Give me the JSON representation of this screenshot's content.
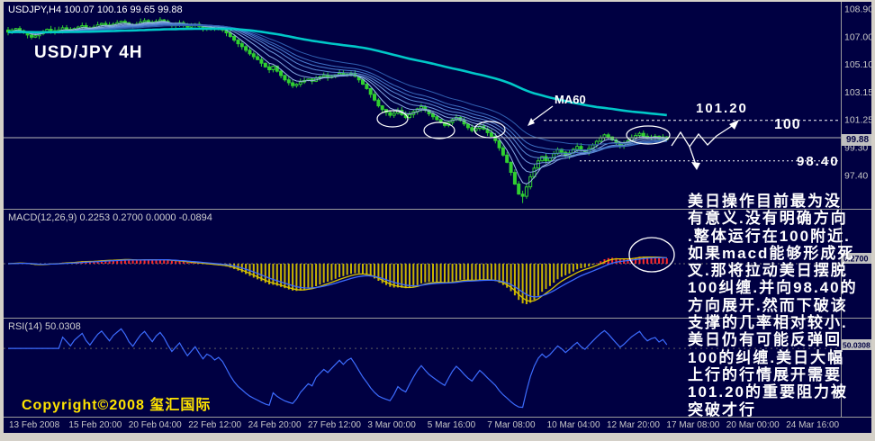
{
  "window": {
    "title_line": "USDJPY,H4 100.07 100.16 99.65 99.88",
    "chart_label": "USD/JPY 4H",
    "copyright": "Copyright©2008 玺汇国际"
  },
  "colors": {
    "background": "#000042",
    "candle": "#30d030",
    "ma_slow": "#00c8c8",
    "fan": [
      "#9db9e8",
      "#85a8e2",
      "#6f99dc",
      "#5c8bd6",
      "#4a7dd0",
      "#3c6ec2",
      "#2f5fb0"
    ],
    "macd_hist_pos": "#ff2a2a",
    "macd_hist_neg": "#c8b400",
    "macd_line_blue": "#3c6cff",
    "macd_line_yellow": "#d8c400",
    "rsi_line": "#3c6cff",
    "separator": "#9c9c9c",
    "axis_text": "#c8c8c8",
    "annotation": "#ffffff",
    "price_box_bg": "#c0c0c0"
  },
  "price_axis": {
    "labels": [
      "108.90",
      "107.00",
      "105.10",
      "103.15",
      "101.25",
      "99.30",
      "97.40"
    ],
    "current": "99.88"
  },
  "macd_panel": {
    "label": "MACD(12,26,9) 0.2253 0.2700 0.0000 -0.0894",
    "current": "0.2700"
  },
  "rsi_panel": {
    "label": "RSI(14) 50.0308",
    "current": "50.0308"
  },
  "time_axis": {
    "labels": [
      "13 Feb 2008",
      "15 Feb 20:00",
      "20 Feb 04:00",
      "22 Feb 12:00",
      "24 Feb 20:00",
      "27 Feb 12:00",
      "3 Mar 00:00",
      "5 Mar 16:00",
      "7 Mar 08:00",
      "10 Mar 04:00",
      "12 Mar 20:00",
      "17 Mar 08:00",
      "20 Mar 00:00",
      "24 Mar 16:00"
    ]
  },
  "annotations": {
    "ma60": "MA60",
    "r1": "101.20",
    "pivot": "100",
    "s1": "98.40"
  },
  "analysis": {
    "lines": [
      "美日操作目前最为没",
      "有意义.没有明确方向",
      ".整体运行在100附近.",
      "如果macd能够形成死",
      "叉.那将拉动美日摆脱",
      "100纠缠.并向98.40的",
      "方向展开.然而下破该",
      "支撑的几率相对较小.",
      "美日仍有可能反弹回",
      "100的纠缠.美日大幅",
      "上行的行情展开需要",
      "101.20的重要阻力被",
      "突破才行"
    ]
  },
  "chart_data": {
    "type": "candlestick",
    "symbol": "USDJPY",
    "timeframe": "H4",
    "title": "USD/JPY 4H",
    "ohlc_current": {
      "open": 100.07,
      "high": 100.16,
      "low": 99.65,
      "close": 99.88
    },
    "price_axis_top": 108.9,
    "price_axis_step": 1.9167,
    "levels": {
      "resistance": 101.2,
      "pivot": 100.0,
      "support": 98.4
    },
    "indicators": {
      "ma_fan_periods": [
        5,
        10,
        15,
        20,
        25,
        30,
        40
      ],
      "ma_slow_period": 120,
      "macd_params": [
        12,
        26,
        9
      ],
      "macd_values": [
        0.2253,
        0.27,
        0.0,
        -0.0894
      ],
      "rsi_period": 14,
      "rsi_value": 50.0308
    },
    "closes": [
      107.3,
      107.45,
      107.55,
      107.4,
      107.25,
      107.1,
      106.95,
      107.05,
      107.2,
      107.35,
      107.5,
      107.4,
      107.3,
      107.45,
      107.6,
      107.5,
      107.4,
      107.55,
      107.65,
      107.75,
      107.6,
      107.5,
      107.65,
      107.8,
      107.9,
      107.8,
      107.7,
      107.85,
      107.95,
      108.05,
      107.95,
      107.8,
      107.7,
      107.85,
      108.0,
      108.1,
      108.0,
      107.9,
      108.05,
      108.15,
      108.05,
      107.9,
      107.75,
      107.85,
      107.95,
      107.8,
      107.65,
      107.75,
      107.85,
      107.7,
      107.55,
      107.65,
      107.6,
      107.5,
      107.55,
      107.45,
      107.25,
      107.0,
      106.75,
      106.5,
      106.3,
      106.05,
      105.8,
      105.6,
      105.4,
      105.15,
      104.9,
      104.7,
      104.95,
      104.6,
      104.3,
      104.0,
      103.8,
      103.6,
      103.7,
      103.85,
      103.95,
      104.05,
      103.9,
      104.1,
      104.2,
      104.3,
      104.15,
      104.25,
      104.35,
      104.45,
      104.3,
      104.4,
      104.45,
      104.25,
      104.0,
      103.7,
      103.4,
      103.0,
      102.6,
      102.2,
      101.95,
      101.75,
      101.55,
      101.7,
      101.9,
      101.6,
      101.4,
      101.6,
      101.8,
      102.0,
      102.15,
      101.9,
      101.65,
      101.45,
      101.25,
      101.05,
      100.85,
      101.05,
      101.25,
      101.4,
      101.2,
      100.95,
      100.7,
      100.5,
      100.65,
      100.8,
      100.6,
      100.35,
      100.1,
      99.8,
      99.3,
      98.8,
      98.3,
      97.6,
      96.8,
      96.1,
      95.95,
      96.6,
      97.3,
      97.9,
      98.4,
      98.7,
      98.4,
      98.6,
      98.9,
      99.2,
      99.0,
      98.75,
      98.95,
      99.2,
      99.4,
      99.15,
      99.0,
      99.25,
      99.5,
      99.75,
      100.0,
      100.2,
      100.05,
      99.85,
      99.65,
      99.45,
      99.6,
      99.8,
      100.0,
      100.15,
      100.3,
      100.1,
      99.95,
      100.05,
      100.1,
      99.95,
      100.05,
      99.88
    ]
  }
}
